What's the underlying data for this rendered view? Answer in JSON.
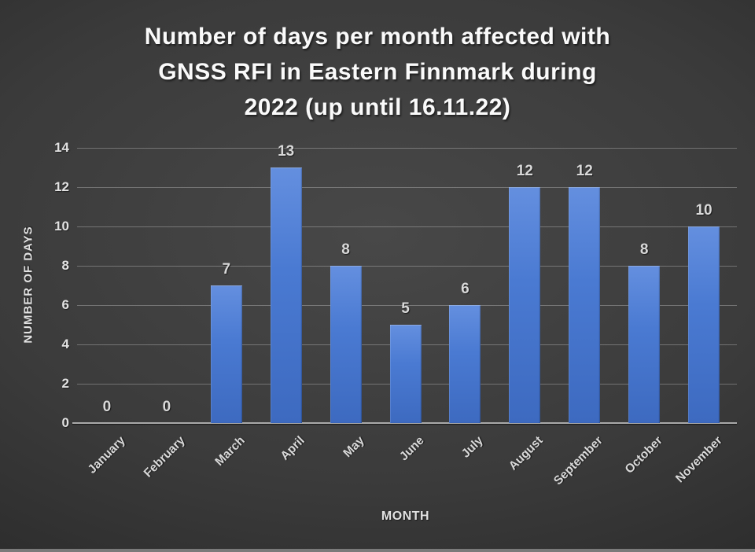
{
  "chart_data": {
    "type": "bar",
    "title": "Number of days per month affected with GNSS RFI in Eastern Finnmark during 2022 (up until 16.11.22)",
    "title_lines": [
      "Number of days per month affected with",
      "GNSS RFI in Eastern Finnmark during",
      "2022 (up until 16.11.22)"
    ],
    "categories": [
      "January",
      "February",
      "March",
      "April",
      "May",
      "June",
      "July",
      "August",
      "September",
      "October",
      "November"
    ],
    "values": [
      0,
      0,
      7,
      13,
      8,
      5,
      6,
      12,
      12,
      8,
      10
    ],
    "xlabel": "MONTH",
    "ylabel": "NUMBER OF DAYS",
    "ylim": [
      0,
      14
    ],
    "yticks": [
      0,
      2,
      4,
      6,
      8,
      10,
      12,
      14
    ],
    "grid": true,
    "legend": false,
    "bar_value_labels_visible": true,
    "colors": {
      "bar_fill_top": "#648fdf",
      "bar_fill_mid": "#4a7ad2",
      "bar_fill_bottom": "#3d6ac0",
      "background_center": "#484848",
      "background_mid": "#3b3b3b",
      "background_edge": "#1d1d1d",
      "grid_line": "rgba(255,255,255,0.28)",
      "axis_line": "#a9a9a9",
      "title_text": "#fafafa",
      "tick_text": "#e2e2e2",
      "value_label_text": "#d9d9d9",
      "bottom_strip": "#7a7a7a"
    }
  }
}
